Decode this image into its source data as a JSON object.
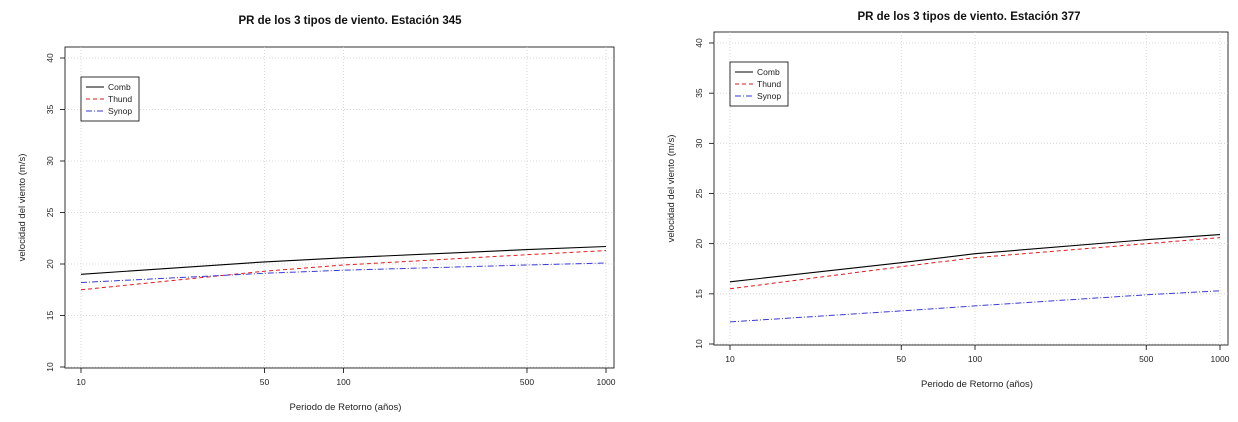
{
  "chart_data": [
    {
      "type": "line",
      "title": "PR de los 3 tipos de viento. Estación 345",
      "xlabel": "Periodo de Retorno (años)",
      "ylabel": "velocidad del viento (m/s)",
      "x_scale": "log",
      "xlim": [
        10,
        1000
      ],
      "ylim": [
        10,
        40
      ],
      "x_ticks": [
        10,
        50,
        100,
        500,
        1000
      ],
      "y_ticks": [
        10,
        15,
        20,
        25,
        30,
        35,
        40
      ],
      "grid": true,
      "legend_position": "top-left",
      "series": [
        {
          "name": "Comb",
          "color": "#000000",
          "dash": "solid",
          "x": [
            10,
            50,
            100,
            500,
            1000
          ],
          "values": [
            19.0,
            20.2,
            20.6,
            21.4,
            21.7
          ]
        },
        {
          "name": "Thund",
          "color": "#e31a1c",
          "dash": "dashed",
          "x": [
            10,
            50,
            100,
            500,
            1000
          ],
          "values": [
            17.5,
            19.3,
            19.9,
            20.9,
            21.3
          ]
        },
        {
          "name": "Synop",
          "color": "#3a3ad8",
          "dash": "dashdot",
          "x": [
            10,
            50,
            100,
            500,
            1000
          ],
          "values": [
            18.2,
            19.1,
            19.4,
            19.9,
            20.1
          ]
        }
      ]
    },
    {
      "type": "line",
      "title": "PR de los 3 tipos de viento. Estación 377",
      "xlabel": "Periodo de Retorno (años)",
      "ylabel": "velocidad del viento (m/s)",
      "x_scale": "log",
      "xlim": [
        10,
        1000
      ],
      "ylim": [
        10,
        40
      ],
      "x_ticks": [
        10,
        50,
        100,
        500,
        1000
      ],
      "y_ticks": [
        10,
        15,
        20,
        25,
        30,
        35,
        40
      ],
      "grid": true,
      "legend_position": "top-left",
      "series": [
        {
          "name": "Comb",
          "color": "#000000",
          "dash": "solid",
          "x": [
            10,
            50,
            100,
            500,
            1000
          ],
          "values": [
            16.2,
            18.1,
            19.0,
            20.4,
            20.9
          ]
        },
        {
          "name": "Thund",
          "color": "#e31a1c",
          "dash": "dashed",
          "x": [
            10,
            50,
            100,
            500,
            1000
          ],
          "values": [
            15.5,
            17.7,
            18.6,
            20.0,
            20.6
          ]
        },
        {
          "name": "Synop",
          "color": "#3a3ad8",
          "dash": "dashdot",
          "x": [
            10,
            50,
            100,
            500,
            1000
          ],
          "values": [
            12.2,
            13.3,
            13.8,
            14.9,
            15.3
          ]
        }
      ]
    }
  ]
}
